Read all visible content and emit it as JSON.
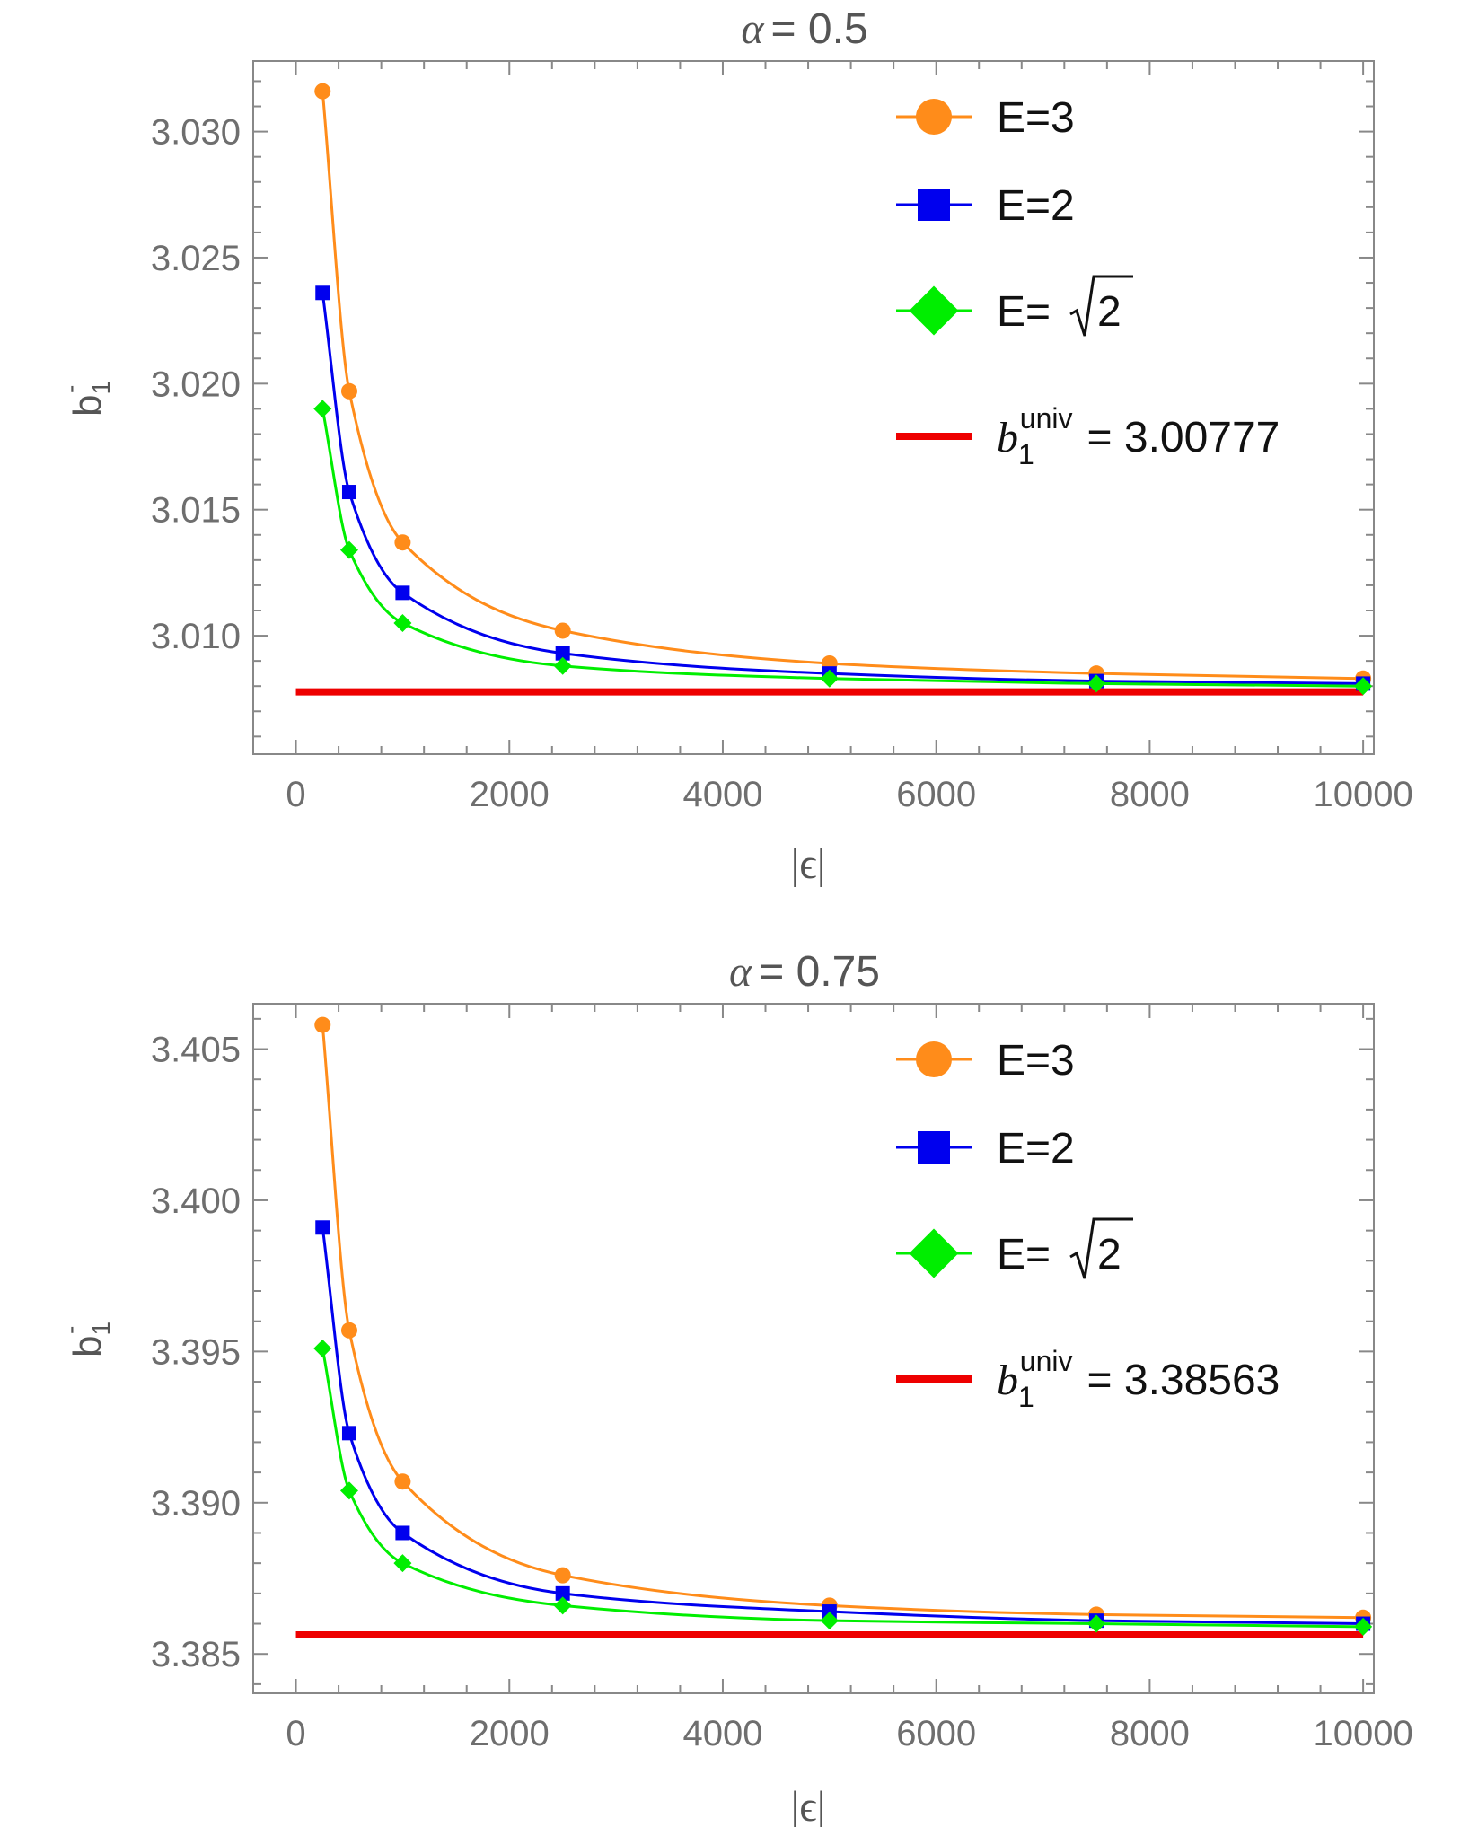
{
  "colors": {
    "E3": "#ff8c1a",
    "E2": "#0000ee",
    "Esqrt2": "#00ee00",
    "univ": "#ee0000",
    "frame": "#888888",
    "text": "#6e6e6e"
  },
  "chart_data": [
    {
      "type": "line",
      "title_symbol": "α",
      "title_value": "= 0.5",
      "xlabel": "|ϵ|",
      "ylabel": "b",
      "ylabel_sub": "1",
      "ylabel_sup": "-",
      "xlim": [
        -400,
        10100
      ],
      "ylim": [
        3.0053,
        3.0328
      ],
      "xticks": [
        0,
        2000,
        4000,
        6000,
        8000,
        10000
      ],
      "xtick_labels": [
        "0",
        "2000",
        "4000",
        "6000",
        "8000",
        "10000"
      ],
      "yticks": [
        3.01,
        3.015,
        3.02,
        3.025,
        3.03
      ],
      "ytick_labels": [
        "3.010",
        "3.015",
        "3.020",
        "3.025",
        "3.030"
      ],
      "x": [
        250,
        500,
        1000,
        2500,
        5000,
        7500,
        10000
      ],
      "series": [
        {
          "name": "E=3",
          "label": "E=3",
          "marker": "circle",
          "color_key": "E3",
          "values": [
            3.0316,
            3.0197,
            3.0137,
            3.0102,
            3.0089,
            3.0085,
            3.0083
          ]
        },
        {
          "name": "E=2",
          "label": "E=2",
          "marker": "square",
          "color_key": "E2",
          "values": [
            3.0236,
            3.0157,
            3.0117,
            3.0093,
            3.0085,
            3.0082,
            3.0081
          ]
        },
        {
          "name": "E=√2",
          "label": "E=",
          "label_root": "2",
          "marker": "diamond",
          "color_key": "Esqrt2",
          "values": [
            3.019,
            3.0134,
            3.0105,
            3.0088,
            3.0083,
            3.0081,
            3.008
          ]
        }
      ],
      "reference": {
        "symbol": "b",
        "sub": "1",
        "sup": "univ",
        "value_text": "= 3.00777",
        "value": 3.00777,
        "x_range": [
          0,
          10000
        ]
      },
      "legend_position": "top-right"
    },
    {
      "type": "line",
      "title_symbol": "α",
      "title_value": "= 0.75",
      "xlabel": "|ϵ|",
      "ylabel": "b",
      "ylabel_sub": "1",
      "ylabel_sup": "-",
      "xlim": [
        -400,
        10100
      ],
      "ylim": [
        3.3837,
        3.4065
      ],
      "xticks": [
        0,
        2000,
        4000,
        6000,
        8000,
        10000
      ],
      "xtick_labels": [
        "0",
        "2000",
        "4000",
        "6000",
        "8000",
        "10000"
      ],
      "yticks": [
        3.385,
        3.39,
        3.395,
        3.4,
        3.405
      ],
      "ytick_labels": [
        "3.385",
        "3.390",
        "3.395",
        "3.400",
        "3.405"
      ],
      "x": [
        250,
        500,
        1000,
        2500,
        5000,
        7500,
        10000
      ],
      "series": [
        {
          "name": "E=3",
          "label": "E=3",
          "marker": "circle",
          "color_key": "E3",
          "values": [
            3.4058,
            3.3957,
            3.3907,
            3.3876,
            3.3866,
            3.3863,
            3.3862
          ]
        },
        {
          "name": "E=2",
          "label": "E=2",
          "marker": "square",
          "color_key": "E2",
          "values": [
            3.3991,
            3.3923,
            3.389,
            3.387,
            3.3864,
            3.3861,
            3.386
          ]
        },
        {
          "name": "E=√2",
          "label": "E=",
          "label_root": "2",
          "marker": "diamond",
          "color_key": "Esqrt2",
          "values": [
            3.3951,
            3.3904,
            3.388,
            3.3866,
            3.3861,
            3.386,
            3.3859
          ]
        }
      ],
      "reference": {
        "symbol": "b",
        "sub": "1",
        "sup": "univ",
        "value_text": "= 3.38563",
        "value": 3.38563,
        "x_range": [
          0,
          10000
        ]
      },
      "legend_position": "top-right"
    }
  ]
}
